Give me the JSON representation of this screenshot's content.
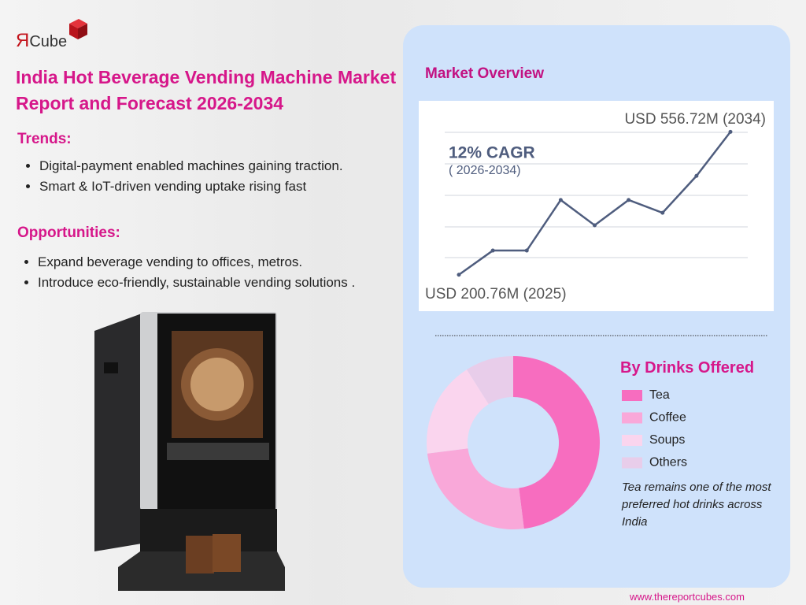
{
  "logo": {
    "mark": "Я",
    "text": "Cube"
  },
  "title": "India Hot Beverage Vending Machine Market Report and Forecast 2026-2034",
  "trends": {
    "heading": "Trends:",
    "items": [
      "Digital-payment enabled machines gaining traction.",
      "Smart & IoT-driven vending uptake rising fast"
    ]
  },
  "opportunities": {
    "heading": "Opportunities:",
    "items": [
      "Expand beverage vending to offices, metros.",
      "Introduce eco-friendly, sustainable vending solutions ."
    ]
  },
  "footer": "www.thereportcubes.com",
  "chart_data": [
    {
      "type": "line",
      "title": "Market Overview",
      "categories": [
        null,
        null,
        null,
        null,
        null,
        null,
        null,
        null,
        null
      ],
      "values": [
        200.76,
        261,
        261,
        387,
        324,
        387,
        355,
        447,
        556.72
      ],
      "color": "#4f5d7e",
      "ylim": [
        110,
        630
      ],
      "annotations": [
        "USD 556.72M (2034)",
        "USD 200.76M (2025)",
        "12% CAGR",
        "( 2026-2034)"
      ]
    },
    {
      "type": "pie",
      "title": "By Drinks Offered",
      "categories": [
        "Tea",
        "Coffee",
        "Soups",
        "Others"
      ],
      "values": [
        48,
        25,
        18,
        9
      ],
      "colors": [
        "#f76dbf",
        "#f9a8d9",
        "#fad5ee",
        "#e8cdea"
      ],
      "note": "Tea remains one of the most preferred hot drinks across India"
    }
  ]
}
